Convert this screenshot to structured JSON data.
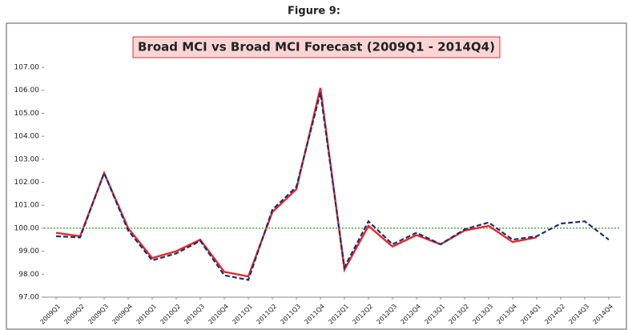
{
  "chart_data": {
    "type": "line",
    "caption": "Figure 9:",
    "title": "Broad MCI vs Broad MCI Forecast (2009Q1 - 2014Q4)",
    "categories": [
      "2009Q1",
      "2009Q2",
      "2009Q3",
      "2009Q4",
      "2010Q1",
      "2010Q2",
      "2010Q3",
      "2010Q4",
      "2011Q1",
      "2011Q2",
      "2011Q3",
      "2011Q4",
      "2012Q1",
      "2012Q2",
      "2012Q3",
      "2012Q4",
      "2013Q1",
      "2013Q2",
      "2013Q3",
      "2013Q4",
      "2014Q1",
      "2014Q2",
      "2014Q3",
      "2014Q4"
    ],
    "series": [
      {
        "color": "#e8282b",
        "dash": "solid",
        "values": [
          99.8,
          99.65,
          102.4,
          100.0,
          98.7,
          99.0,
          99.5,
          98.1,
          97.9,
          100.7,
          101.7,
          106.1,
          98.2,
          100.1,
          99.2,
          99.7,
          99.3,
          99.9,
          100.1,
          99.4,
          99.6,
          null,
          null,
          null
        ]
      },
      {
        "color": "#1f2f6b",
        "dash": "dashed",
        "values": [
          99.65,
          99.6,
          102.4,
          99.9,
          98.6,
          98.9,
          99.45,
          97.95,
          97.75,
          100.8,
          101.8,
          105.9,
          98.3,
          100.3,
          99.3,
          99.8,
          99.3,
          99.95,
          100.25,
          99.5,
          99.65,
          100.2,
          100.3,
          99.5
        ]
      }
    ],
    "reference_line": {
      "value": 100,
      "color": "#2e9b2e"
    },
    "ylim": [
      97,
      107
    ],
    "yticks": [
      {
        "value": 97,
        "label": "97.00"
      },
      {
        "value": 98,
        "label": "98.00"
      },
      {
        "value": 99,
        "label": "99.00"
      },
      {
        "value": 100,
        "label": "100.00"
      },
      {
        "value": 101,
        "label": "101.00"
      },
      {
        "value": 102,
        "label": "102.00"
      },
      {
        "value": 103,
        "label": "103.00"
      },
      {
        "value": 104,
        "label": "104.00"
      },
      {
        "value": 105,
        "label": "105.00"
      },
      {
        "value": 106,
        "label": "106.00"
      },
      {
        "value": 107,
        "label": "107.00"
      }
    ],
    "grid": false
  }
}
